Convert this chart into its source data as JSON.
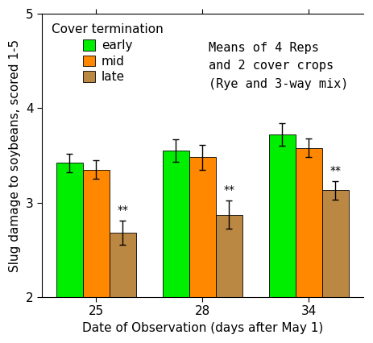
{
  "groups": [
    "25",
    "28",
    "34"
  ],
  "series": [
    "early",
    "mid",
    "late"
  ],
  "values": [
    [
      3.42,
      3.55,
      3.72
    ],
    [
      3.35,
      3.48,
      3.58
    ],
    [
      2.68,
      2.87,
      3.13
    ]
  ],
  "errors": [
    [
      0.1,
      0.12,
      0.12
    ],
    [
      0.1,
      0.13,
      0.1
    ],
    [
      0.13,
      0.15,
      0.1
    ]
  ],
  "colors": [
    "#00ee00",
    "#ff8800",
    "#bb8844"
  ],
  "bar_width": 0.25,
  "xlabel": "Date of Observation (days after May 1)",
  "ylabel": "Slug damage to soybeans, scored 1-5",
  "ylim": [
    2,
    5
  ],
  "yticks": [
    2,
    3,
    4,
    5
  ],
  "legend_title": "Cover termination",
  "note_text": "Means of 4 Reps\nand 2 cover crops\n(Rye and 3-way mix)",
  "background_color": "#ffffff",
  "axis_fontsize": 11,
  "tick_fontsize": 11,
  "legend_fontsize": 11,
  "note_fontsize": 11
}
